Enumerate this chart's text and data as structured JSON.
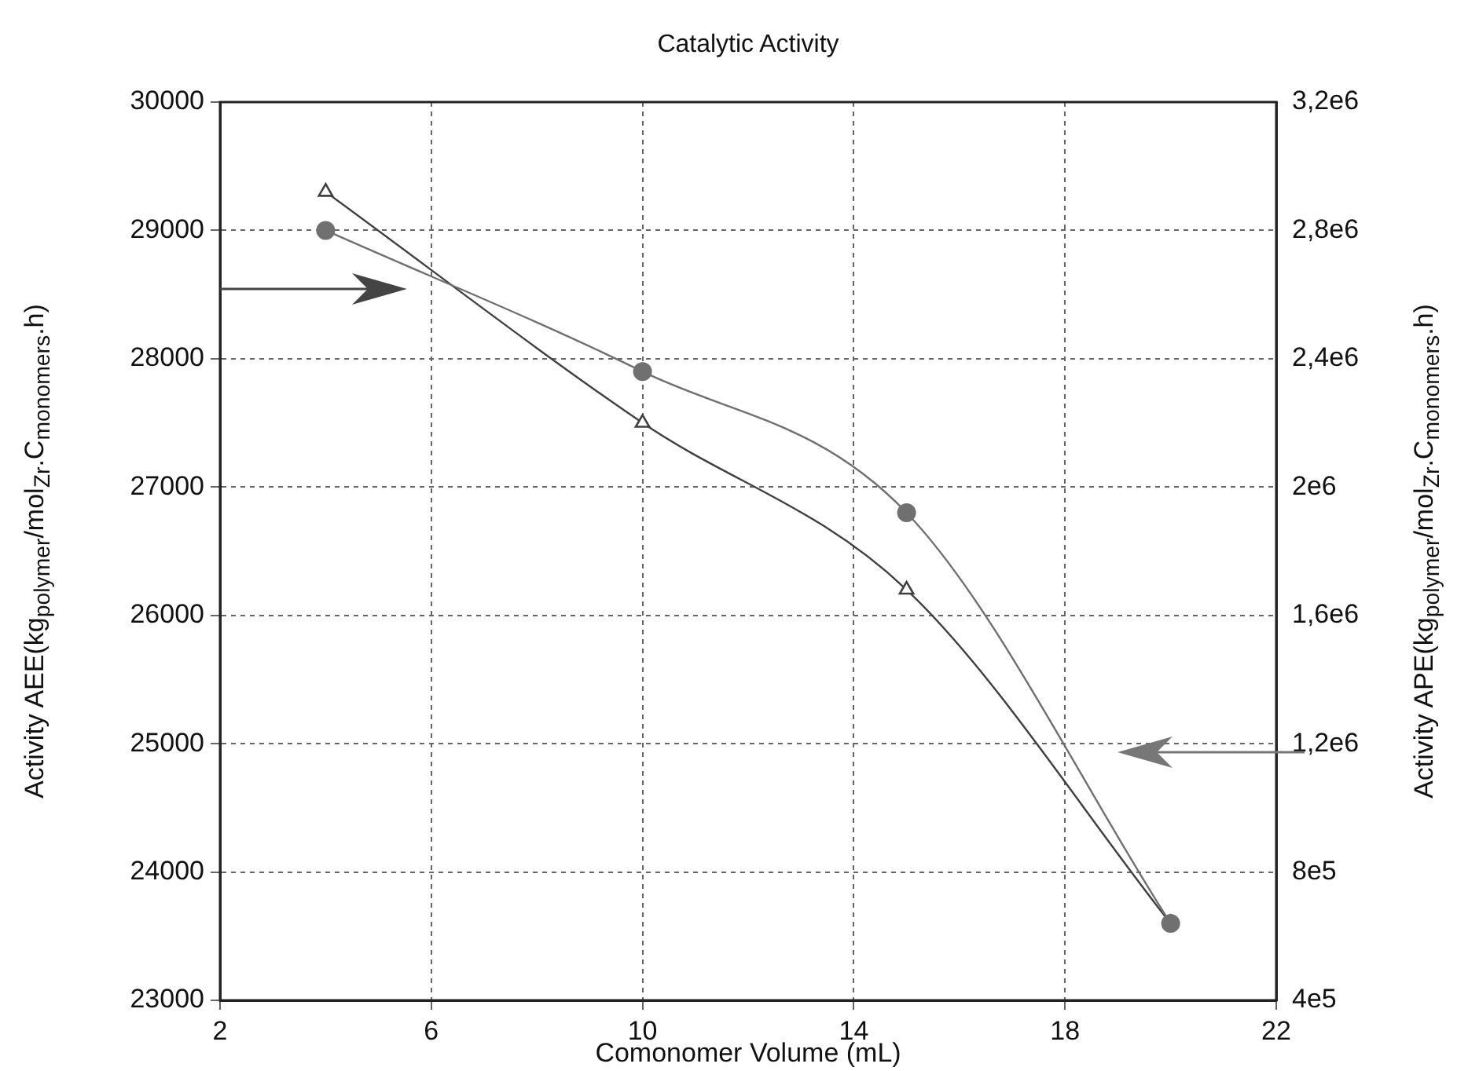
{
  "chart_data": {
    "type": "line",
    "title": "Catalytic Activity",
    "xlabel": "Comonomer Volume (mL)",
    "ylabel": "Activity AEE(kg$_{polymer}$/mol$_{Zr}$.C$_{monomers}$.h)",
    "y2label": "Activity APE(kg$_{polymer}$/mol$_{Zr}$.C$_{monomers}$.h)",
    "x": [
      4,
      10,
      15,
      20
    ],
    "xlim": [
      2,
      22
    ],
    "xticks": [
      2,
      6,
      10,
      14,
      18,
      22
    ],
    "ylim": [
      23000,
      30000
    ],
    "yticks": [
      23000,
      24000,
      25000,
      26000,
      27000,
      28000,
      29000,
      30000
    ],
    "y2lim": [
      400000,
      3200000
    ],
    "y2ticks": [
      {
        "value": 400000,
        "label": "4e5"
      },
      {
        "value": 800000,
        "label": "8e5"
      },
      {
        "value": 1200000,
        "label": "1,2e6"
      },
      {
        "value": 1600000,
        "label": "1,6e6"
      },
      {
        "value": 2000000,
        "label": "2e6"
      },
      {
        "value": 2400000,
        "label": "2,4e6"
      },
      {
        "value": 2800000,
        "label": "2,8e6"
      },
      {
        "value": 3200000,
        "label": "3,2e6"
      }
    ],
    "series": [
      {
        "color": "#707070",
        "values": [
          29000,
          27900,
          26800,
          23600
        ],
        "marker": "circle"
      },
      {
        "color": "#404040",
        "values": [
          2920000,
          2200000,
          1680000,
          640000
        ],
        "marker": "triangle",
        "axis": "y2"
      }
    ],
    "grid": true,
    "legend": false
  }
}
